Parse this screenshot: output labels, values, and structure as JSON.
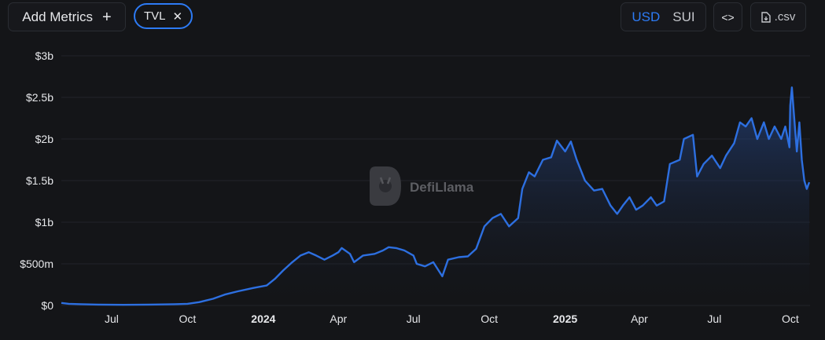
{
  "toolbar": {
    "add_metrics_label": "Add Metrics",
    "add_icon": "plus-icon",
    "metric_chip_label": "TVL",
    "remove_icon": "close-icon",
    "currency_options": [
      "USD",
      "SUI"
    ],
    "currency_selected": "USD",
    "embed_icon": "code-icon",
    "csv_label": ".csv",
    "csv_icon": "file-download-icon"
  },
  "watermark": "DefiLlama",
  "colors": {
    "background": "#141518",
    "line": "#2d6fe0",
    "accent": "#2d7bf5"
  },
  "chart_data": {
    "type": "area",
    "y_tick_labels": [
      "$0",
      "$500m",
      "$1b",
      "$1.5b",
      "$2b",
      "$2.5b",
      "$3b"
    ],
    "y_tick_values": [
      0,
      0.5,
      1,
      1.5,
      2,
      2.5,
      3
    ],
    "ylim": [
      0,
      3
    ],
    "y_unit": "billions USD",
    "x_tick_labels": [
      "Jul",
      "Oct",
      "2024",
      "Apr",
      "Jul",
      "Oct",
      "2025",
      "Apr",
      "Jul",
      "Oct"
    ],
    "x_tick_dates": [
      "2023-07-01",
      "2023-10-01",
      "2024-01-01",
      "2024-04-01",
      "2024-07-01",
      "2024-10-01",
      "2025-01-01",
      "2025-04-01",
      "2025-07-01",
      "2025-10-01"
    ],
    "x_tick_bold": [
      false,
      false,
      true,
      false,
      false,
      false,
      true,
      false,
      false,
      false
    ],
    "xlim": [
      "2023-05-01",
      "2025-10-25"
    ],
    "grid": "horizontal",
    "series": [
      {
        "points": [
          [
            "2023-05-01",
            0.03
          ],
          [
            "2023-05-10",
            0.02
          ],
          [
            "2023-05-25",
            0.015
          ],
          [
            "2023-06-15",
            0.01
          ],
          [
            "2023-07-15",
            0.008
          ],
          [
            "2023-08-15",
            0.01
          ],
          [
            "2023-09-15",
            0.015
          ],
          [
            "2023-10-01",
            0.02
          ],
          [
            "2023-10-15",
            0.04
          ],
          [
            "2023-11-01",
            0.08
          ],
          [
            "2023-11-15",
            0.13
          ],
          [
            "2023-12-01",
            0.17
          ],
          [
            "2023-12-20",
            0.21
          ],
          [
            "2024-01-05",
            0.24
          ],
          [
            "2024-01-15",
            0.32
          ],
          [
            "2024-01-25",
            0.42
          ],
          [
            "2024-02-05",
            0.52
          ],
          [
            "2024-02-15",
            0.6
          ],
          [
            "2024-02-25",
            0.64
          ],
          [
            "2024-03-05",
            0.6
          ],
          [
            "2024-03-15",
            0.55
          ],
          [
            "2024-03-25",
            0.6
          ],
          [
            "2024-04-01",
            0.64
          ],
          [
            "2024-04-05",
            0.69
          ],
          [
            "2024-04-15",
            0.62
          ],
          [
            "2024-04-20",
            0.52
          ],
          [
            "2024-05-01",
            0.6
          ],
          [
            "2024-05-15",
            0.62
          ],
          [
            "2024-05-25",
            0.66
          ],
          [
            "2024-06-01",
            0.7
          ],
          [
            "2024-06-10",
            0.69
          ],
          [
            "2024-06-20",
            0.66
          ],
          [
            "2024-07-01",
            0.6
          ],
          [
            "2024-07-05",
            0.5
          ],
          [
            "2024-07-15",
            0.47
          ],
          [
            "2024-07-25",
            0.52
          ],
          [
            "2024-08-05",
            0.35
          ],
          [
            "2024-08-12",
            0.55
          ],
          [
            "2024-08-25",
            0.58
          ],
          [
            "2024-09-05",
            0.59
          ],
          [
            "2024-09-15",
            0.68
          ],
          [
            "2024-09-25",
            0.95
          ],
          [
            "2024-10-05",
            1.05
          ],
          [
            "2024-10-15",
            1.1
          ],
          [
            "2024-10-25",
            0.95
          ],
          [
            "2024-11-05",
            1.05
          ],
          [
            "2024-11-10",
            1.4
          ],
          [
            "2024-11-18",
            1.6
          ],
          [
            "2024-11-25",
            1.55
          ],
          [
            "2024-12-05",
            1.75
          ],
          [
            "2024-12-15",
            1.78
          ],
          [
            "2024-12-22",
            1.98
          ],
          [
            "2025-01-01",
            1.85
          ],
          [
            "2025-01-08",
            1.97
          ],
          [
            "2025-01-15",
            1.75
          ],
          [
            "2025-01-25",
            1.5
          ],
          [
            "2025-02-05",
            1.38
          ],
          [
            "2025-02-15",
            1.4
          ],
          [
            "2025-02-25",
            1.2
          ],
          [
            "2025-03-05",
            1.1
          ],
          [
            "2025-03-12",
            1.2
          ],
          [
            "2025-03-20",
            1.3
          ],
          [
            "2025-03-28",
            1.15
          ],
          [
            "2025-04-05",
            1.2
          ],
          [
            "2025-04-15",
            1.3
          ],
          [
            "2025-04-22",
            1.2
          ],
          [
            "2025-05-01",
            1.25
          ],
          [
            "2025-05-08",
            1.7
          ],
          [
            "2025-05-20",
            1.75
          ],
          [
            "2025-05-25",
            2.0
          ],
          [
            "2025-06-05",
            2.05
          ],
          [
            "2025-06-10",
            1.55
          ],
          [
            "2025-06-18",
            1.7
          ],
          [
            "2025-06-28",
            1.8
          ],
          [
            "2025-07-08",
            1.65
          ],
          [
            "2025-07-15",
            1.8
          ],
          [
            "2025-07-25",
            1.95
          ],
          [
            "2025-08-01",
            2.2
          ],
          [
            "2025-08-08",
            2.15
          ],
          [
            "2025-08-15",
            2.25
          ],
          [
            "2025-08-22",
            2.0
          ],
          [
            "2025-08-30",
            2.2
          ],
          [
            "2025-09-05",
            2.0
          ],
          [
            "2025-09-12",
            2.15
          ],
          [
            "2025-09-20",
            2.0
          ],
          [
            "2025-09-25",
            2.15
          ],
          [
            "2025-09-30",
            1.9
          ],
          [
            "2025-10-01",
            2.4
          ],
          [
            "2025-10-03",
            2.62
          ],
          [
            "2025-10-07",
            2.1
          ],
          [
            "2025-10-09",
            1.85
          ],
          [
            "2025-10-12",
            2.2
          ],
          [
            "2025-10-15",
            1.75
          ],
          [
            "2025-10-18",
            1.5
          ],
          [
            "2025-10-21",
            1.4
          ],
          [
            "2025-10-24",
            1.48
          ]
        ]
      }
    ]
  }
}
